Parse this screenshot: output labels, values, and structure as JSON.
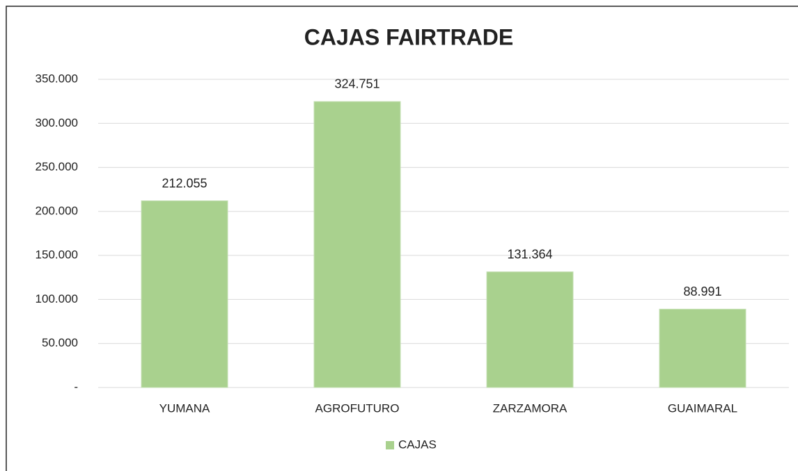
{
  "chart_data": {
    "type": "bar",
    "title": "CAJAS FAIRTRADE",
    "categories": [
      "YUMANA",
      "AGROFUTURO",
      "ZARZAMORA",
      "GUAIMARAL"
    ],
    "series": [
      {
        "name": "CAJAS",
        "color": "#a9d18e",
        "values": [
          212055,
          324751,
          131364,
          88991
        ],
        "value_labels": [
          "212.055",
          "324.751",
          "131.364",
          "88.991"
        ]
      }
    ],
    "ylim": [
      0,
      350000
    ],
    "yticks": [
      {
        "value": 0,
        "label": "-"
      },
      {
        "value": 50000,
        "label": "50.000"
      },
      {
        "value": 100000,
        "label": "100.000"
      },
      {
        "value": 150000,
        "label": "150.000"
      },
      {
        "value": 200000,
        "label": "200.000"
      },
      {
        "value": 250000,
        "label": "250.000"
      },
      {
        "value": 300000,
        "label": "300.000"
      },
      {
        "value": 350000,
        "label": "350.000"
      }
    ],
    "grid": true,
    "legend": "bottom"
  }
}
